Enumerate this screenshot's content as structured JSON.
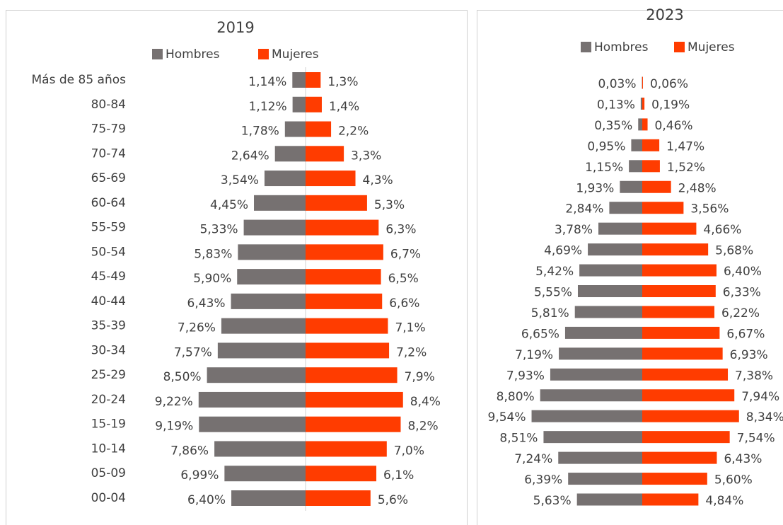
{
  "chart_data": [
    {
      "type": "bar",
      "title": "2019",
      "categories": [
        "Más de 85 años",
        "80-84",
        "75-79",
        "70-74",
        "65-69",
        "60-64",
        "55-59",
        "50-54",
        "45-49",
        "40-44",
        "35-39",
        "30-34",
        "25-29",
        "20-24",
        "15-19",
        "10-14",
        "05-09",
        "00-04"
      ],
      "series": [
        {
          "name": "Hombres",
          "color": "#767171",
          "values": [
            1.14,
            1.12,
            1.78,
            2.64,
            3.54,
            4.45,
            5.33,
            5.83,
            5.9,
            6.43,
            7.26,
            7.57,
            8.5,
            9.22,
            9.19,
            7.86,
            6.99,
            6.4
          ],
          "value_labels": [
            "1,14%",
            "1,12%",
            "1,78%",
            "2,64%",
            "3,54%",
            "4,45%",
            "5,33%",
            "5,83%",
            "5,90%",
            "6,43%",
            "7,26%",
            "7,57%",
            "8,50%",
            "9,22%",
            "9,19%",
            "7,86%",
            "6,99%",
            "6,40%"
          ]
        },
        {
          "name": "Mujeres",
          "color": "#ff3c00",
          "values": [
            1.3,
            1.4,
            2.2,
            3.3,
            4.3,
            5.3,
            6.3,
            6.7,
            6.5,
            6.6,
            7.1,
            7.2,
            7.9,
            8.4,
            8.2,
            7.0,
            6.1,
            5.6
          ],
          "value_labels": [
            "1,3%",
            "1,4%",
            "2,2%",
            "3,3%",
            "4,3%",
            "5,3%",
            "6,3%",
            "6,7%",
            "6,5%",
            "6,6%",
            "7,1%",
            "7,2%",
            "7,9%",
            "8,4%",
            "8,2%",
            "7,0%",
            "6,1%",
            "5,6%"
          ]
        }
      ]
    },
    {
      "type": "bar",
      "title": "2023",
      "categories": [
        null,
        null,
        null,
        null,
        null,
        null,
        null,
        null,
        null,
        null,
        null,
        null,
        null,
        null,
        null,
        null,
        null,
        null,
        null,
        null,
        null
      ],
      "series": [
        {
          "name": "Hombres",
          "color": "#767171",
          "values": [
            0.03,
            0.13,
            0.35,
            0.95,
            1.15,
            1.93,
            2.84,
            3.78,
            4.69,
            5.42,
            5.55,
            5.81,
            6.65,
            7.19,
            7.93,
            8.8,
            9.54,
            8.51,
            7.24,
            6.39,
            5.63
          ],
          "value_labels": [
            "0,03%",
            "0,13%",
            "0,35%",
            "0,95%",
            "1,15%",
            "1,93%",
            "2,84%",
            "3,78%",
            "4,69%",
            "5,42%",
            "5,55%",
            "5,81%",
            "6,65%",
            "7,19%",
            "7,93%",
            "8,80%",
            "9,54%",
            "8,51%",
            "7,24%",
            "6,39%",
            "5,63%"
          ]
        },
        {
          "name": "Mujeres",
          "color": "#ff3c00",
          "values": [
            0.06,
            0.19,
            0.46,
            1.47,
            1.52,
            2.48,
            3.56,
            4.66,
            5.68,
            6.4,
            6.33,
            6.22,
            6.67,
            6.93,
            7.38,
            7.94,
            8.34,
            7.54,
            6.43,
            5.6,
            4.84
          ],
          "value_labels": [
            "0,06%",
            "0,19%",
            "0,46%",
            "1,47%",
            "1,52%",
            "2,48%",
            "3,56%",
            "4,66%",
            "5,68%",
            "6,40%",
            "6,33%",
            "6,22%",
            "6,67%",
            "6,93%",
            "7,38%",
            "7,94%",
            "8,34%",
            "7,54%",
            "6,43%",
            "5,60%",
            "4,84%"
          ]
        }
      ]
    }
  ]
}
